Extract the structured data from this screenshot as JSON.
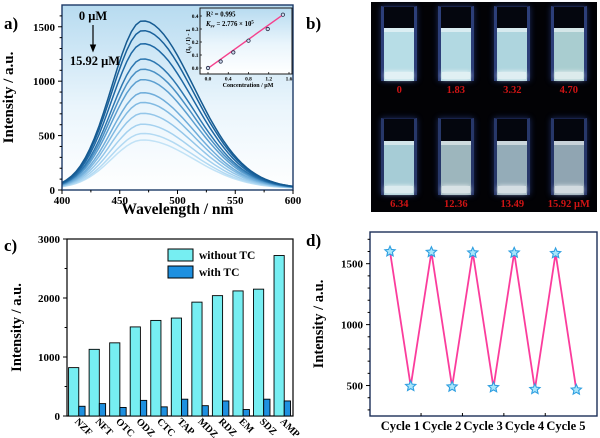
{
  "panels": {
    "a": {
      "letter": "a)"
    },
    "b": {
      "letter": "b)",
      "label_color": "#cf1414",
      "cuvettes": [
        {
          "label": "0",
          "liquid": "#b7dde6"
        },
        {
          "label": "1.83",
          "liquid": "#b2d9e2"
        },
        {
          "label": "3.32",
          "liquid": "#aed5de"
        },
        {
          "label": "4.70",
          "liquid": "#a9cdd0"
        },
        {
          "label": "6.34",
          "liquid": "#a6ccd6"
        },
        {
          "label": "12.36",
          "liquid": "#9db6bd"
        },
        {
          "label": "13.49",
          "liquid": "#94acb8"
        },
        {
          "label": "15.92 μM",
          "liquid": "#90a5b2"
        }
      ]
    },
    "c": {
      "letter": "c)"
    },
    "d": {
      "letter": "d)"
    }
  },
  "chart_data": [
    {
      "panel": "a",
      "type": "line",
      "xlabel": "Wavelength / nm",
      "ylabel": "Intensity / a.u.",
      "xlim": [
        400,
        600
      ],
      "ylim": [
        0,
        1700
      ],
      "xticks": [
        400,
        450,
        500,
        550,
        600
      ],
      "yticks": [
        0,
        500,
        1000,
        1500
      ],
      "annotation_top": "0 μM",
      "annotation_bottom": "15.92 μM",
      "peak_wavelength": 470,
      "peak_intensities": [
        1540,
        1450,
        1330,
        1190,
        1095,
        1000,
        880,
        790,
        690,
        590,
        505,
        445
      ],
      "curve_colors": [
        "#155a91",
        "#19619b",
        "#1e68a4",
        "#2d77b0",
        "#4a90c4",
        "#5c9fd0",
        "#6fadda",
        "#81bae2",
        "#93c6e9",
        "#a4d1ef",
        "#b3daf3",
        "#c1e2f6"
      ],
      "bg_gradient": [
        "#b7dbf0",
        "#eaf5fc",
        "#ffffff"
      ],
      "frame_color": "#1d3a66"
    },
    {
      "panel": "a-inset",
      "type": "scatter",
      "r2_text": "R² = 0.995",
      "ksv_parts": [
        [
          "K",
          "i"
        ],
        [
          "sv",
          "sub"
        ],
        [
          " = 2.776 × 10",
          "n"
        ],
        [
          "5",
          "sup"
        ]
      ],
      "ksv_text": "Ksv = 2.776 × 10⁵",
      "xlabel": "Concentration / μM",
      "ylabel_parts": [
        [
          "(I",
          "n"
        ],
        [
          "0",
          "sub"
        ],
        [
          " / I) - 1",
          "n"
        ]
      ],
      "ylabel_text": "(I0 / I) - 1",
      "xticks": [
        0.0,
        0.4,
        0.8,
        1.2,
        1.6
      ],
      "yticks": [
        0.0,
        0.1,
        0.2,
        0.3,
        0.4
      ],
      "x": [
        0.0,
        0.25,
        0.5,
        0.8,
        1.18,
        1.48
      ],
      "y": [
        0.0,
        0.05,
        0.12,
        0.21,
        0.3,
        0.41
      ],
      "line_color": "#f5418c",
      "marker_fill": "#cfd9ec",
      "marker_stroke": "#222a44"
    },
    {
      "panel": "c",
      "type": "bar",
      "ylabel": "Intensity / a.u.",
      "ylim": [
        0,
        3000
      ],
      "yticks": [
        0,
        1000,
        2000,
        3000
      ],
      "categories": [
        "NZF",
        "NFT",
        "OTC",
        "ODZ",
        "CTC",
        "TAP",
        "MDZ",
        "RDZ",
        "EM",
        "SDZ",
        "AMP"
      ],
      "series": [
        {
          "name": "without TC",
          "color": "#76eef2",
          "values": [
            820,
            1130,
            1240,
            1510,
            1620,
            1660,
            1930,
            2040,
            2120,
            2150,
            2720
          ]
        },
        {
          "name": "with TC",
          "color": "#1e90e0",
          "values": [
            165,
            210,
            145,
            265,
            155,
            285,
            175,
            255,
            110,
            285,
            255
          ]
        }
      ],
      "legend_position": "top-right",
      "frame_color": "#000000"
    },
    {
      "panel": "d",
      "type": "line",
      "ylabel": "Intensity / a.u.",
      "ylim": [
        250,
        1760
      ],
      "yticks": [
        500,
        1000,
        1500
      ],
      "x_categories": [
        "Cycle 1",
        "Cycle 2",
        "Cycle 3",
        "Cycle 4",
        "Cycle 5"
      ],
      "values": [
        1600,
        495,
        1595,
        490,
        1590,
        485,
        1590,
        470,
        1585,
        465
      ],
      "line_color": "#fb3c9c",
      "marker": "star",
      "marker_fill": "#a8e6fb",
      "marker_stroke": "#2f9fe0",
      "frame_color": "#1c2f58"
    }
  ]
}
